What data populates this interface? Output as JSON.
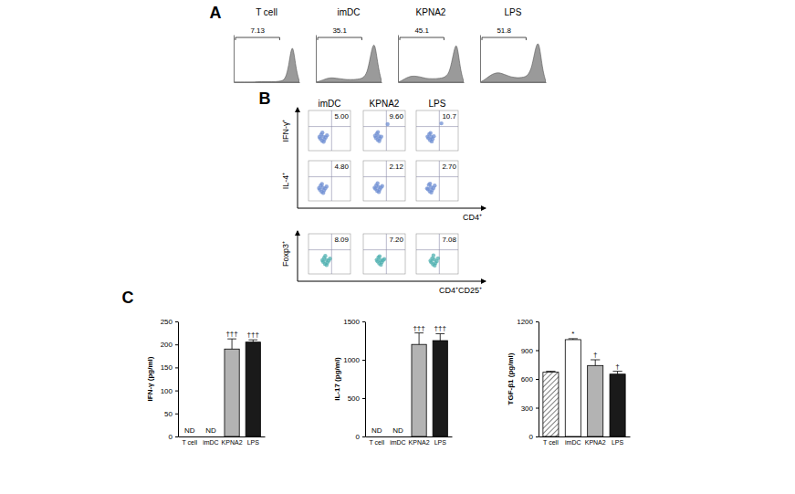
{
  "chart_data": [
    {
      "type": "area",
      "panel": "A",
      "tick_labels": false,
      "xlim": [
        0,
        19
      ],
      "ylim": [
        0,
        110
      ],
      "x": [
        0,
        1,
        2,
        3,
        4,
        5,
        6,
        7,
        8,
        9,
        10,
        11,
        12,
        13,
        14,
        15,
        16,
        17,
        18,
        19
      ],
      "series": [
        {
          "name": "T cell",
          "gate_value": 7.13,
          "color": "#9a9a9a",
          "values": [
            0,
            0,
            0,
            0,
            0,
            0,
            0,
            1,
            1,
            1,
            1,
            1,
            1,
            2,
            3,
            8,
            40,
            100,
            30,
            2
          ]
        },
        {
          "name": "imDC",
          "gate_value": 35.1,
          "color": "#9a9a9a",
          "values": [
            0,
            2,
            5,
            8,
            10,
            10,
            9,
            8,
            7,
            6,
            6,
            6,
            7,
            8,
            12,
            25,
            70,
            100,
            35,
            3
          ]
        },
        {
          "name": "KPNA2",
          "gate_value": 45.1,
          "color": "#9a9a9a",
          "values": [
            0,
            3,
            8,
            12,
            14,
            14,
            13,
            11,
            9,
            8,
            8,
            8,
            9,
            10,
            14,
            25,
            65,
            100,
            30,
            2
          ]
        },
        {
          "name": "LPS",
          "gate_value": 51.8,
          "color": "#9a9a9a",
          "values": [
            0,
            4,
            10,
            16,
            20,
            22,
            21,
            18,
            15,
            12,
            11,
            10,
            11,
            12,
            18,
            35,
            80,
            100,
            30,
            2
          ]
        }
      ]
    },
    {
      "type": "scatter",
      "panel": "B",
      "tick_labels": false,
      "xlim": [
        0,
        100
      ],
      "ylim": [
        0,
        100
      ],
      "columns": [
        "imDC",
        "KPNA2",
        "LPS"
      ],
      "groups": [
        {
          "x_label": "CD4⁺",
          "rows": [
            {
              "y_label": "IFN-γ⁺",
              "color": "#6f8fd3",
              "plots": [
                {
                  "value": 5.0,
                  "value_label": "5.00",
                  "x": [
                    28,
                    32,
                    35,
                    38,
                    30,
                    41,
                    36,
                    33,
                    44,
                    26
                  ],
                  "y": [
                    30,
                    25,
                    35,
                    28,
                    40,
                    33,
                    22,
                    45,
                    38,
                    34
                  ]
                },
                {
                  "value": 9.6,
                  "value_label": "9.60",
                  "x": [
                    30,
                    34,
                    37,
                    40,
                    32,
                    43,
                    38,
                    35,
                    58,
                    28
                  ],
                  "y": [
                    32,
                    27,
                    36,
                    30,
                    42,
                    35,
                    24,
                    46,
                    66,
                    37
                  ]
                },
                {
                  "value": 10.7,
                  "value_label": "10.7",
                  "x": [
                    29,
                    33,
                    36,
                    39,
                    31,
                    42,
                    37,
                    34,
                    60,
                    27
                  ],
                  "y": [
                    31,
                    26,
                    34,
                    29,
                    41,
                    36,
                    23,
                    44,
                    68,
                    35
                  ]
                }
              ]
            },
            {
              "y_label": "IL-4⁺",
              "color": "#6f8fd3",
              "plots": [
                {
                  "value": 4.8,
                  "value_label": "4.80",
                  "x": [
                    27,
                    31,
                    34,
                    37,
                    29,
                    40,
                    35,
                    32,
                    43,
                    25
                  ],
                  "y": [
                    28,
                    23,
                    33,
                    26,
                    38,
                    31,
                    20,
                    42,
                    36,
                    32
                  ]
                },
                {
                  "value": 2.12,
                  "value_label": "2.12",
                  "x": [
                    29,
                    33,
                    36,
                    39,
                    31,
                    42,
                    37,
                    34,
                    45,
                    27
                  ],
                  "y": [
                    30,
                    25,
                    35,
                    28,
                    39,
                    33,
                    22,
                    44,
                    37,
                    33
                  ]
                },
                {
                  "value": 2.7,
                  "value_label": "2.70",
                  "x": [
                    28,
                    32,
                    35,
                    38,
                    30,
                    41,
                    36,
                    33,
                    44,
                    26
                  ],
                  "y": [
                    29,
                    24,
                    34,
                    27,
                    40,
                    32,
                    21,
                    43,
                    38,
                    31
                  ]
                }
              ]
            }
          ]
        },
        {
          "x_label": "CD4⁺CD25⁺",
          "rows": [
            {
              "y_label": "Foxp3⁺",
              "color": "#4fb0b0",
              "plots": [
                {
                  "value": 8.09,
                  "value_label": "8.09",
                  "x": [
                    35,
                    39,
                    42,
                    45,
                    37,
                    48,
                    43,
                    40,
                    51,
                    33
                  ],
                  "y": [
                    30,
                    25,
                    35,
                    28,
                    40,
                    33,
                    22,
                    45,
                    38,
                    34
                  ]
                },
                {
                  "value": 7.2,
                  "value_label": "7.20",
                  "x": [
                    34,
                    38,
                    41,
                    44,
                    36,
                    47,
                    42,
                    39,
                    50,
                    32
                  ],
                  "y": [
                    31,
                    26,
                    34,
                    29,
                    41,
                    34,
                    23,
                    44,
                    37,
                    35
                  ]
                },
                {
                  "value": 7.08,
                  "value_label": "7.08",
                  "x": [
                    36,
                    40,
                    43,
                    46,
                    38,
                    49,
                    44,
                    41,
                    52,
                    34
                  ],
                  "y": [
                    29,
                    24,
                    36,
                    27,
                    39,
                    32,
                    21,
                    46,
                    39,
                    33
                  ]
                }
              ]
            }
          ]
        }
      ]
    },
    {
      "type": "bar",
      "panel": "C",
      "y_label": "IFN-γ (pg/ml)",
      "categories": [
        "T cell",
        "imDC",
        "KPNA2",
        "LPS"
      ],
      "values": [
        null,
        null,
        190,
        205
      ],
      "errors": [
        null,
        null,
        22,
        5
      ],
      "annotations": [
        "ND",
        "ND",
        "†††",
        "†††"
      ],
      "colors": [
        "#ffffff",
        "#ffffff",
        "#b3b3b3",
        "#1a1a1a"
      ],
      "ylim": [
        0,
        250
      ],
      "yticks": [
        0,
        50,
        100,
        150,
        200,
        250
      ]
    },
    {
      "type": "bar",
      "y_label": "IL-17 (pg/ml)",
      "categories": [
        "T cell",
        "imDC",
        "KPNA2",
        "LPS"
      ],
      "values": [
        null,
        null,
        1200,
        1250
      ],
      "errors": [
        null,
        null,
        150,
        90
      ],
      "annotations": [
        "ND",
        "ND",
        "†††",
        "†††"
      ],
      "colors": [
        "#ffffff",
        "#ffffff",
        "#b3b3b3",
        "#1a1a1a"
      ],
      "ylim": [
        0,
        1500
      ],
      "yticks": [
        0,
        500,
        1000,
        1500
      ]
    },
    {
      "type": "bar",
      "y_label": "TGF-β1 (pg/ml)",
      "categories": [
        "T cell",
        "imDC",
        "KPNA2",
        "LPS"
      ],
      "values": [
        670,
        1010,
        740,
        650
      ],
      "errors": [
        10,
        10,
        60,
        30
      ],
      "annotations": [
        null,
        "*",
        "†",
        "†"
      ],
      "colors": [
        "#ffffff",
        "#ffffff",
        "#b3b3b3",
        "#1a1a1a"
      ],
      "ylim": [
        0,
        1200
      ],
      "yticks": [
        0,
        300,
        600,
        900,
        1200
      ]
    }
  ]
}
